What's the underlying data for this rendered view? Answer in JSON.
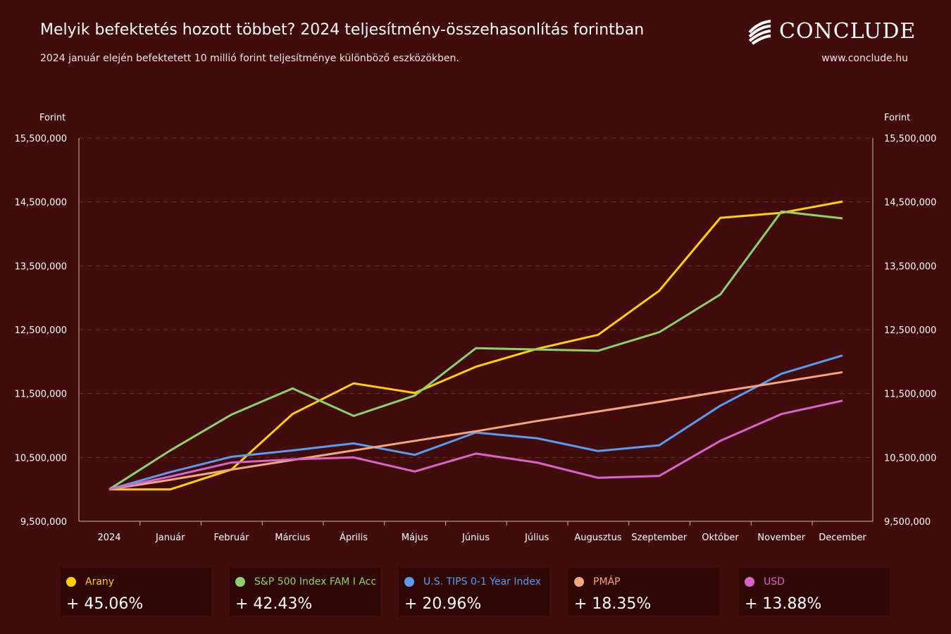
{
  "header": {
    "title": "Melyik befektetés hozott többet? 2024 teljesítmény-összehasonlítás forintban",
    "subtitle": "2024 január elején befektetett 10 millió forint teljesítménye különböző eszközökben.",
    "brand": "CONCLUDE",
    "website": "www.conclude.hu"
  },
  "chart_data": {
    "type": "line",
    "title": "Melyik befektetés hozott többet? 2024 teljesítmény-összehasonlítás forintban",
    "subtitle": "2024 január elején befektetett 10 millió forint teljesítménye különböző eszközökben.",
    "ylabel": "Forint",
    "ylabel_right": "Forint",
    "ylim": [
      9500000,
      15500000
    ],
    "yticks": [
      9500000,
      10500000,
      11500000,
      12500000,
      13500000,
      14500000,
      15500000
    ],
    "ytick_labels": [
      "9,500,000",
      "10,500,000",
      "11,500,000",
      "12,500,000",
      "13,500,000",
      "14,500,000",
      "15,500,000"
    ],
    "categories": [
      "2024",
      "Január",
      "Február",
      "Március",
      "Április",
      "Május",
      "Június",
      "Július",
      "Augusztus",
      "Szeptember",
      "Október",
      "November",
      "December"
    ],
    "grid": "horizontal dashed",
    "background": "#410c0c",
    "series": [
      {
        "name": "Arany",
        "color": "#ffd000",
        "values": [
          10000000,
          10000000,
          10310000,
          11180000,
          11660000,
          11510000,
          11920000,
          12200000,
          12420000,
          13110000,
          14250000,
          14330000,
          14506000
        ]
      },
      {
        "name": "S&P 500 Index FAM I Acc",
        "color": "#8ed16a",
        "values": [
          10000000,
          10610000,
          11170000,
          11580000,
          11150000,
          11470000,
          12210000,
          12190000,
          12170000,
          12460000,
          13050000,
          14350000,
          14243000
        ]
      },
      {
        "name": "U.S. TIPS 0-1 Year Index",
        "color": "#5b9cf0",
        "values": [
          10000000,
          10270000,
          10510000,
          10610000,
          10720000,
          10540000,
          10890000,
          10800000,
          10600000,
          10690000,
          11310000,
          11810000,
          12096000
        ]
      },
      {
        "name": "PMÁP",
        "color": "#f2a77f",
        "values": [
          10000000,
          10150000,
          10310000,
          10460000,
          10610000,
          10760000,
          10910000,
          11070000,
          11220000,
          11370000,
          11530000,
          11680000,
          11835000
        ]
      },
      {
        "name": "USD",
        "color": "#d865c9",
        "values": [
          10000000,
          10200000,
          10420000,
          10470000,
          10500000,
          10280000,
          10560000,
          10420000,
          10180000,
          10210000,
          10760000,
          11180000,
          11388000
        ]
      }
    ]
  },
  "legend": [
    {
      "name": "Arany",
      "value": "+ 45.06%",
      "color": "#ffd000"
    },
    {
      "name": "S&P 500 Index FAM I Acc",
      "value": "+ 42.43%",
      "color": "#8ed16a"
    },
    {
      "name": "U.S. TIPS 0-1 Year Index",
      "value": "+ 20.96%",
      "color": "#5b9cf0"
    },
    {
      "name": "PMÁP",
      "value": "+ 18.35%",
      "color": "#f2a77f"
    },
    {
      "name": "USD",
      "value": "+ 13.88%",
      "color": "#d865c9"
    }
  ]
}
